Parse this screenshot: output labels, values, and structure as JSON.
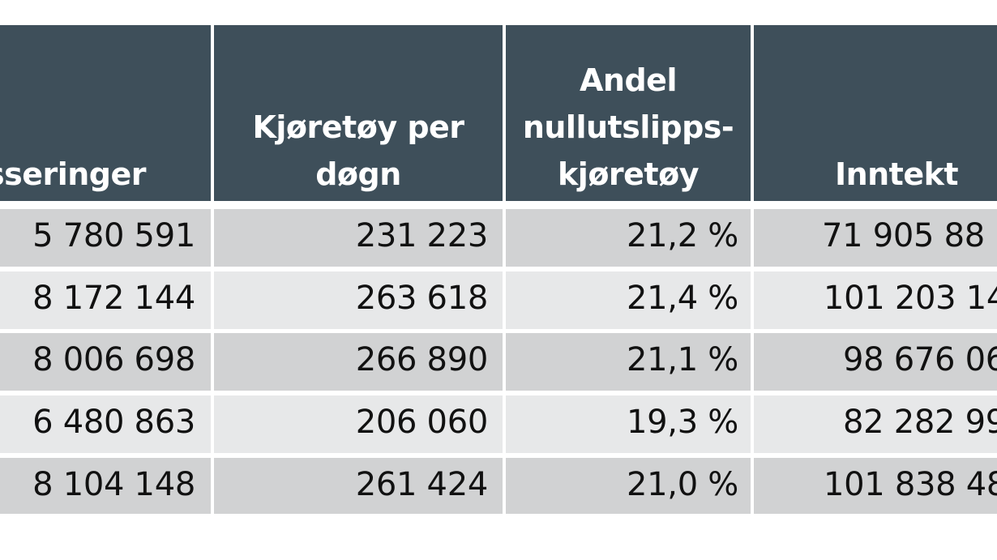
{
  "table": {
    "headers": [
      [
        "sseringer"
      ],
      [
        "Kjøretøy per",
        "døgn"
      ],
      [
        "Andel",
        "nullutslipps-",
        "kjøretøy"
      ],
      [
        "Inntekt"
      ]
    ],
    "rows": [
      [
        "5 780 591",
        "231 223",
        "21,2 %",
        "71 905 88"
      ],
      [
        "8 172 144",
        "263 618",
        "21,4 %",
        "101 203 14"
      ],
      [
        "8 006 698",
        "266 890",
        "21,1 %",
        "98 676 06"
      ],
      [
        "6 480 863",
        "206 060",
        "19,3 %",
        "82 282 99"
      ],
      [
        "8 104 148",
        "261 424",
        "21,0 %",
        "101 838 48"
      ]
    ]
  }
}
